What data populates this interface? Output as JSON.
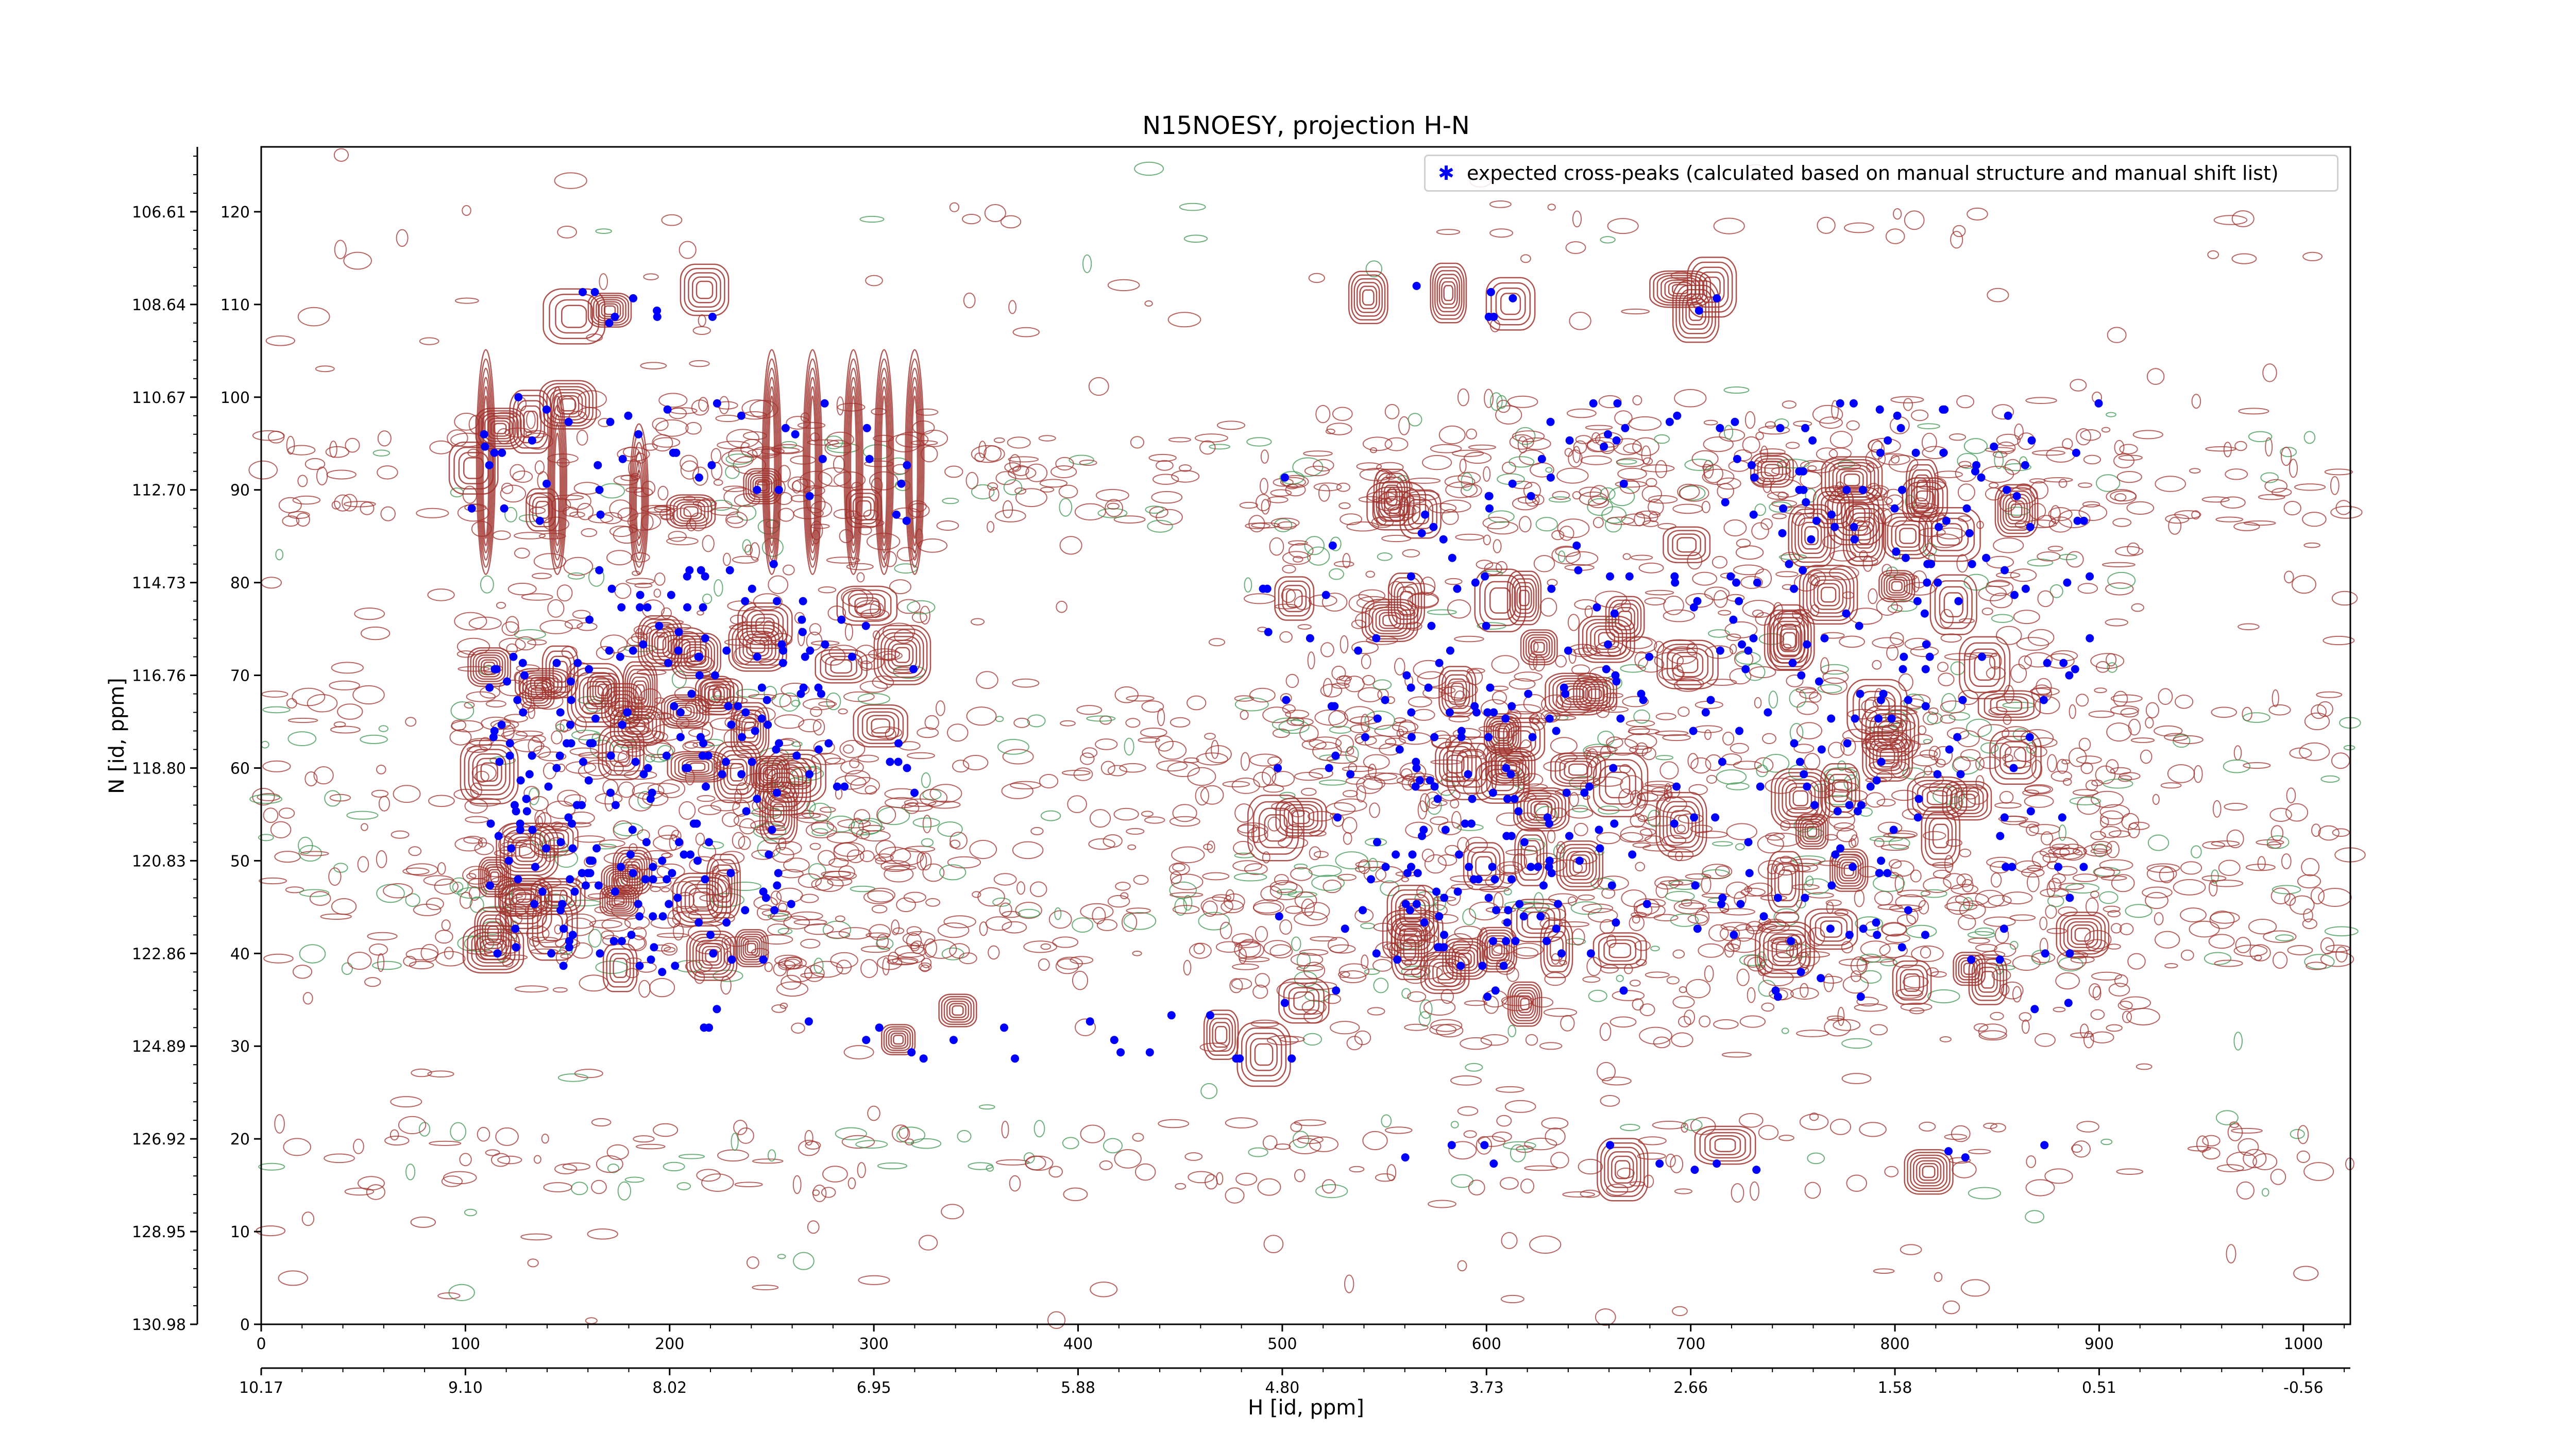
{
  "chart_data": {
    "type": "scatter",
    "title": "N15NOESY, projection H-N",
    "xlabel": "H [id, ppm]",
    "ylabel": "N [id, ppm]",
    "x_index_ticks": [
      0,
      100,
      200,
      300,
      400,
      500,
      600,
      700,
      800,
      900,
      1000
    ],
    "x_ppm_ticks": [
      "10.17",
      "9.10",
      "8.02",
      "6.95",
      "5.88",
      "4.80",
      "3.73",
      "2.66",
      "1.58",
      "0.51",
      "-0.56"
    ],
    "y_index_ticks": [
      0,
      10,
      20,
      30,
      40,
      50,
      60,
      70,
      80,
      90,
      100,
      110,
      120
    ],
    "y_ppm_ticks": [
      "130.98",
      "128.95",
      "126.92",
      "124.89",
      "122.86",
      "120.83",
      "118.80",
      "116.76",
      "114.73",
      "112.70",
      "110.67",
      "108.64",
      "106.61"
    ],
    "xlim": [
      0,
      1023
    ],
    "ylim": [
      0,
      127
    ],
    "legend_position": "top-right",
    "grid": false,
    "colors": {
      "peaks": "#0000ff",
      "positive_contours": "#a0322d",
      "negative_contours": "#3c9650"
    },
    "series": [
      {
        "name": "expected cross-peaks (calculated based on manual structure and manual shift list)",
        "clusters": [
          {
            "x": [
              110,
              160
            ],
            "y": [
              38,
              72
            ],
            "count": 70
          },
          {
            "x": [
              160,
              260
            ],
            "y": [
              38,
              82
            ],
            "count": 140
          },
          {
            "x": [
              260,
              320
            ],
            "y": [
              55,
              82
            ],
            "count": 25
          },
          {
            "x": [
              100,
              320
            ],
            "y": [
              86,
              100
            ],
            "count": 40
          },
          {
            "x": [
              140,
              230
            ],
            "y": [
              108,
              112
            ],
            "count": 8
          },
          {
            "x": [
              490,
              620
            ],
            "y": [
              32,
              92
            ],
            "count": 80
          },
          {
            "x": [
              560,
              640
            ],
            "y": [
              40,
              72
            ],
            "count": 60
          },
          {
            "x": [
              620,
              720
            ],
            "y": [
              36,
              100
            ],
            "count": 70
          },
          {
            "x": [
              720,
              820
            ],
            "y": [
              34,
              100
            ],
            "count": 120
          },
          {
            "x": [
              820,
              900
            ],
            "y": [
              34,
              100
            ],
            "count": 60
          },
          {
            "x": [
              540,
              620
            ],
            "y": [
              108,
              112
            ],
            "count": 5
          },
          {
            "x": [
              690,
              720
            ],
            "y": [
              108,
              112
            ],
            "count": 2
          },
          {
            "x": [
              530,
              900
            ],
            "y": [
              16,
              20
            ],
            "count": 12
          },
          {
            "x": [
              170,
              520
            ],
            "y": [
              28,
              34
            ],
            "count": 20
          }
        ]
      }
    ]
  }
}
